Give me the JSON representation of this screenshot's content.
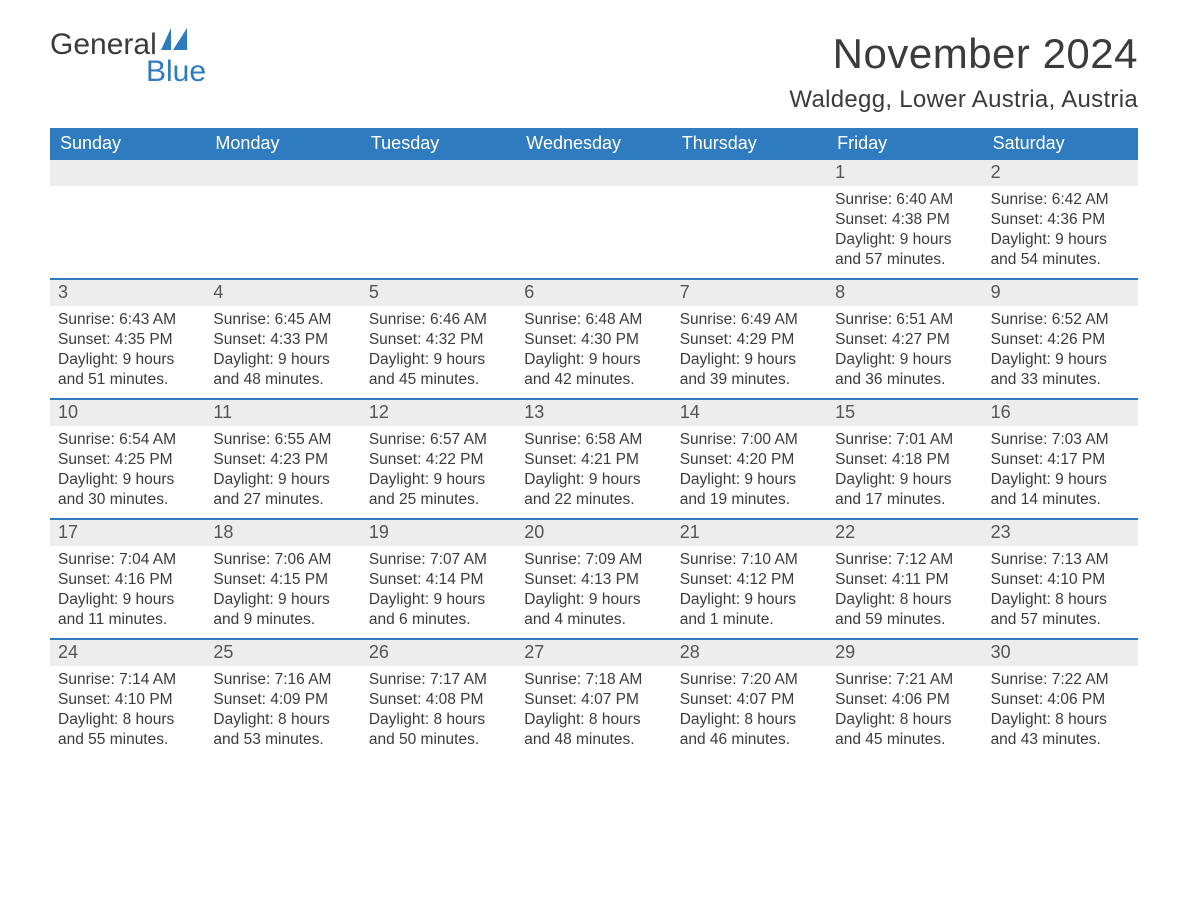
{
  "brand": {
    "word1": "General",
    "word2": "Blue",
    "flag_color": "#2f7bbf"
  },
  "title": "November 2024",
  "location": "Waldegg, Lower Austria, Austria",
  "colors": {
    "header_bg": "#2f7bbf",
    "header_text": "#ffffff",
    "daynum_bg": "#ededed",
    "daynum_text": "#555555",
    "body_text": "#3b3b3b",
    "rule": "#2f7bbf",
    "page_bg": "#ffffff"
  },
  "fonts": {
    "title_size_pt": 32,
    "location_size_pt": 18,
    "weekday_size_pt": 14,
    "body_size_pt": 11.5
  },
  "weekdays": [
    "Sunday",
    "Monday",
    "Tuesday",
    "Wednesday",
    "Thursday",
    "Friday",
    "Saturday"
  ],
  "weeks": [
    [
      {
        "blank": true
      },
      {
        "blank": true
      },
      {
        "blank": true
      },
      {
        "blank": true
      },
      {
        "blank": true
      },
      {
        "n": 1,
        "sunrise": "6:40 AM",
        "sunset": "4:38 PM",
        "dl1": "Daylight: 9 hours",
        "dl2": "and 57 minutes."
      },
      {
        "n": 2,
        "sunrise": "6:42 AM",
        "sunset": "4:36 PM",
        "dl1": "Daylight: 9 hours",
        "dl2": "and 54 minutes."
      }
    ],
    [
      {
        "n": 3,
        "sunrise": "6:43 AM",
        "sunset": "4:35 PM",
        "dl1": "Daylight: 9 hours",
        "dl2": "and 51 minutes."
      },
      {
        "n": 4,
        "sunrise": "6:45 AM",
        "sunset": "4:33 PM",
        "dl1": "Daylight: 9 hours",
        "dl2": "and 48 minutes."
      },
      {
        "n": 5,
        "sunrise": "6:46 AM",
        "sunset": "4:32 PM",
        "dl1": "Daylight: 9 hours",
        "dl2": "and 45 minutes."
      },
      {
        "n": 6,
        "sunrise": "6:48 AM",
        "sunset": "4:30 PM",
        "dl1": "Daylight: 9 hours",
        "dl2": "and 42 minutes."
      },
      {
        "n": 7,
        "sunrise": "6:49 AM",
        "sunset": "4:29 PM",
        "dl1": "Daylight: 9 hours",
        "dl2": "and 39 minutes."
      },
      {
        "n": 8,
        "sunrise": "6:51 AM",
        "sunset": "4:27 PM",
        "dl1": "Daylight: 9 hours",
        "dl2": "and 36 minutes."
      },
      {
        "n": 9,
        "sunrise": "6:52 AM",
        "sunset": "4:26 PM",
        "dl1": "Daylight: 9 hours",
        "dl2": "and 33 minutes."
      }
    ],
    [
      {
        "n": 10,
        "sunrise": "6:54 AM",
        "sunset": "4:25 PM",
        "dl1": "Daylight: 9 hours",
        "dl2": "and 30 minutes."
      },
      {
        "n": 11,
        "sunrise": "6:55 AM",
        "sunset": "4:23 PM",
        "dl1": "Daylight: 9 hours",
        "dl2": "and 27 minutes."
      },
      {
        "n": 12,
        "sunrise": "6:57 AM",
        "sunset": "4:22 PM",
        "dl1": "Daylight: 9 hours",
        "dl2": "and 25 minutes."
      },
      {
        "n": 13,
        "sunrise": "6:58 AM",
        "sunset": "4:21 PM",
        "dl1": "Daylight: 9 hours",
        "dl2": "and 22 minutes."
      },
      {
        "n": 14,
        "sunrise": "7:00 AM",
        "sunset": "4:20 PM",
        "dl1": "Daylight: 9 hours",
        "dl2": "and 19 minutes."
      },
      {
        "n": 15,
        "sunrise": "7:01 AM",
        "sunset": "4:18 PM",
        "dl1": "Daylight: 9 hours",
        "dl2": "and 17 minutes."
      },
      {
        "n": 16,
        "sunrise": "7:03 AM",
        "sunset": "4:17 PM",
        "dl1": "Daylight: 9 hours",
        "dl2": "and 14 minutes."
      }
    ],
    [
      {
        "n": 17,
        "sunrise": "7:04 AM",
        "sunset": "4:16 PM",
        "dl1": "Daylight: 9 hours",
        "dl2": "and 11 minutes."
      },
      {
        "n": 18,
        "sunrise": "7:06 AM",
        "sunset": "4:15 PM",
        "dl1": "Daylight: 9 hours",
        "dl2": "and 9 minutes."
      },
      {
        "n": 19,
        "sunrise": "7:07 AM",
        "sunset": "4:14 PM",
        "dl1": "Daylight: 9 hours",
        "dl2": "and 6 minutes."
      },
      {
        "n": 20,
        "sunrise": "7:09 AM",
        "sunset": "4:13 PM",
        "dl1": "Daylight: 9 hours",
        "dl2": "and 4 minutes."
      },
      {
        "n": 21,
        "sunrise": "7:10 AM",
        "sunset": "4:12 PM",
        "dl1": "Daylight: 9 hours",
        "dl2": "and 1 minute."
      },
      {
        "n": 22,
        "sunrise": "7:12 AM",
        "sunset": "4:11 PM",
        "dl1": "Daylight: 8 hours",
        "dl2": "and 59 minutes."
      },
      {
        "n": 23,
        "sunrise": "7:13 AM",
        "sunset": "4:10 PM",
        "dl1": "Daylight: 8 hours",
        "dl2": "and 57 minutes."
      }
    ],
    [
      {
        "n": 24,
        "sunrise": "7:14 AM",
        "sunset": "4:10 PM",
        "dl1": "Daylight: 8 hours",
        "dl2": "and 55 minutes."
      },
      {
        "n": 25,
        "sunrise": "7:16 AM",
        "sunset": "4:09 PM",
        "dl1": "Daylight: 8 hours",
        "dl2": "and 53 minutes."
      },
      {
        "n": 26,
        "sunrise": "7:17 AM",
        "sunset": "4:08 PM",
        "dl1": "Daylight: 8 hours",
        "dl2": "and 50 minutes."
      },
      {
        "n": 27,
        "sunrise": "7:18 AM",
        "sunset": "4:07 PM",
        "dl1": "Daylight: 8 hours",
        "dl2": "and 48 minutes."
      },
      {
        "n": 28,
        "sunrise": "7:20 AM",
        "sunset": "4:07 PM",
        "dl1": "Daylight: 8 hours",
        "dl2": "and 46 minutes."
      },
      {
        "n": 29,
        "sunrise": "7:21 AM",
        "sunset": "4:06 PM",
        "dl1": "Daylight: 8 hours",
        "dl2": "and 45 minutes."
      },
      {
        "n": 30,
        "sunrise": "7:22 AM",
        "sunset": "4:06 PM",
        "dl1": "Daylight: 8 hours",
        "dl2": "and 43 minutes."
      }
    ]
  ],
  "labels": {
    "sunrise_prefix": "Sunrise: ",
    "sunset_prefix": "Sunset: "
  }
}
